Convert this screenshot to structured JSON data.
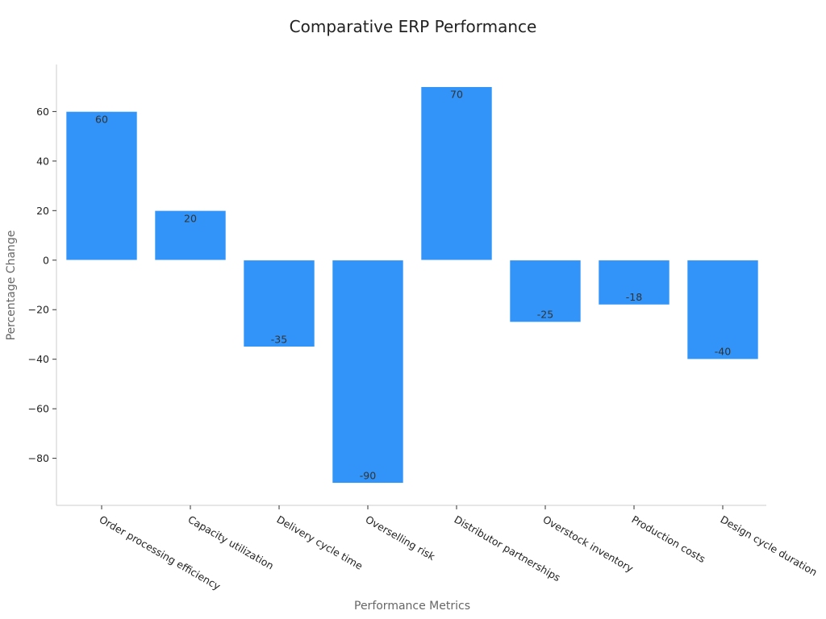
{
  "chart_data": {
    "type": "bar",
    "title": "Comparative ERP Performance",
    "xlabel": "Performance Metrics",
    "ylabel": "Percentage Change",
    "categories": [
      "Order processing efficiency",
      "Capacity utilization",
      "Delivery cycle time",
      "Overselling risk",
      "Distributor partnerships",
      "Overstock inventory",
      "Production costs",
      "Design cycle duration"
    ],
    "values": [
      60,
      20,
      -35,
      -90,
      70,
      -25,
      -18,
      -40
    ],
    "data_labels": [
      "60",
      "20",
      "-35",
      "-90",
      "70",
      "-25",
      "-18",
      "-40"
    ],
    "ylim": [
      -99,
      79
    ],
    "yticks": [
      60,
      40,
      20,
      0,
      -20,
      -40,
      -60,
      -80
    ],
    "ytick_labels": [
      "60",
      "40",
      "20",
      "0",
      "−20",
      "−40",
      "−60",
      "−80"
    ],
    "bar_color": "#3294f8",
    "grid": false,
    "legend": "none"
  }
}
